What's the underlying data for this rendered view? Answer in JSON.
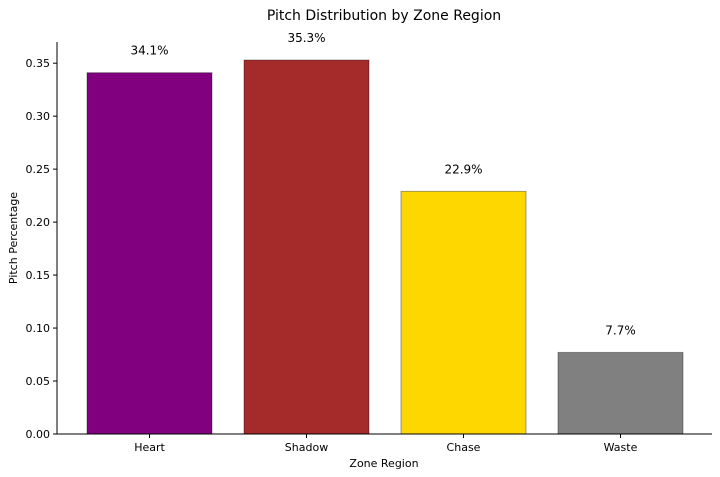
{
  "chart_data": {
    "type": "bar",
    "title": "Pitch Distribution by Zone Region",
    "xlabel": "Zone Region",
    "ylabel": "Pitch Percentage",
    "categories": [
      "Heart",
      "Shadow",
      "Chase",
      "Waste"
    ],
    "values": [
      0.341,
      0.353,
      0.229,
      0.077
    ],
    "data_labels": [
      "34.1%",
      "35.3%",
      "22.9%",
      "7.7%"
    ],
    "colors": [
      "#800080",
      "#a52a2a",
      "#ffd700",
      "#808080"
    ],
    "ylim": [
      0,
      0.37
    ],
    "yticks": [
      0,
      0.05,
      0.1,
      0.15,
      0.2,
      0.25,
      0.3,
      0.35
    ],
    "ytick_labels": [
      "0.00",
      "0.05",
      "0.10",
      "0.15",
      "0.20",
      "0.25",
      "0.30",
      "0.35"
    ],
    "grid": false,
    "legend": "none"
  }
}
